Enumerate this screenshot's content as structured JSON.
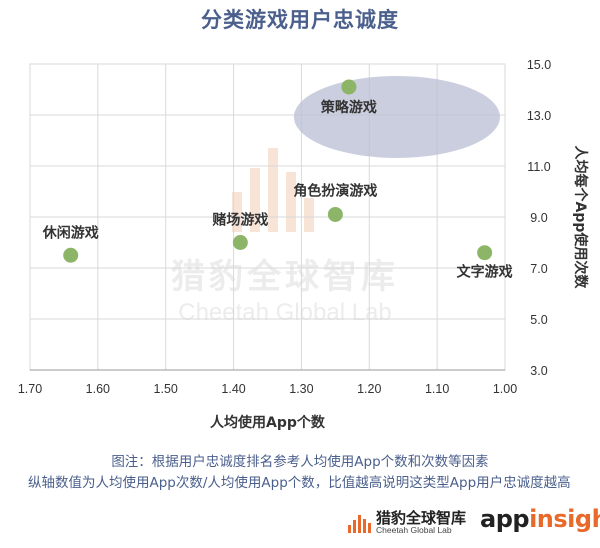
{
  "title": "分类游戏用户忠诚度",
  "watermark": {
    "cn": "猎豹全球智库",
    "en": "Cheetah Global Lab"
  },
  "notes": [
    "图注：根据用户忠诚度排名参考人均使用App个数和次数等因素",
    "纵轴数值为人均使用App次数/人均使用App个数，比值越高说明这类型App用户忠诚度越高"
  ],
  "footer": {
    "brand_cn": "猎豹全球智库",
    "brand_en": "Cheetah Global Lab",
    "partner_a": "app",
    "partner_b": "insight"
  },
  "colors": {
    "title": "#4a5f8c",
    "point": "#8cb568",
    "highlight": "#b9bdd3",
    "axis_text": "#333333",
    "grid": "#d9d9d9",
    "brand": "#e8692a"
  },
  "chart_data": {
    "type": "scatter",
    "xlabel": "人均使用App个数",
    "ylabel": "人均每个App使用次数",
    "xlim": [
      1.7,
      1.0
    ],
    "ylim": [
      3.0,
      15.0
    ],
    "x_reversed": true,
    "x_ticks": [
      "1.70",
      "1.60",
      "1.50",
      "1.40",
      "1.30",
      "1.20",
      "1.10",
      "1.00"
    ],
    "y_ticks": [
      "3.0",
      "5.0",
      "7.0",
      "9.0",
      "11.0",
      "13.0",
      "15.0"
    ],
    "y_axis_position": "right",
    "grid": true,
    "points": [
      {
        "label": "休闲游戏",
        "x": 1.64,
        "y": 7.5
      },
      {
        "label": "赌场游戏",
        "x": 1.39,
        "y": 8.0
      },
      {
        "label": "角色扮演游戏",
        "x": 1.25,
        "y": 9.1
      },
      {
        "label": "策略游戏",
        "x": 1.23,
        "y": 14.1
      },
      {
        "label": "文字游戏",
        "x": 1.03,
        "y": 7.6
      }
    ],
    "highlight": "策略游戏"
  }
}
